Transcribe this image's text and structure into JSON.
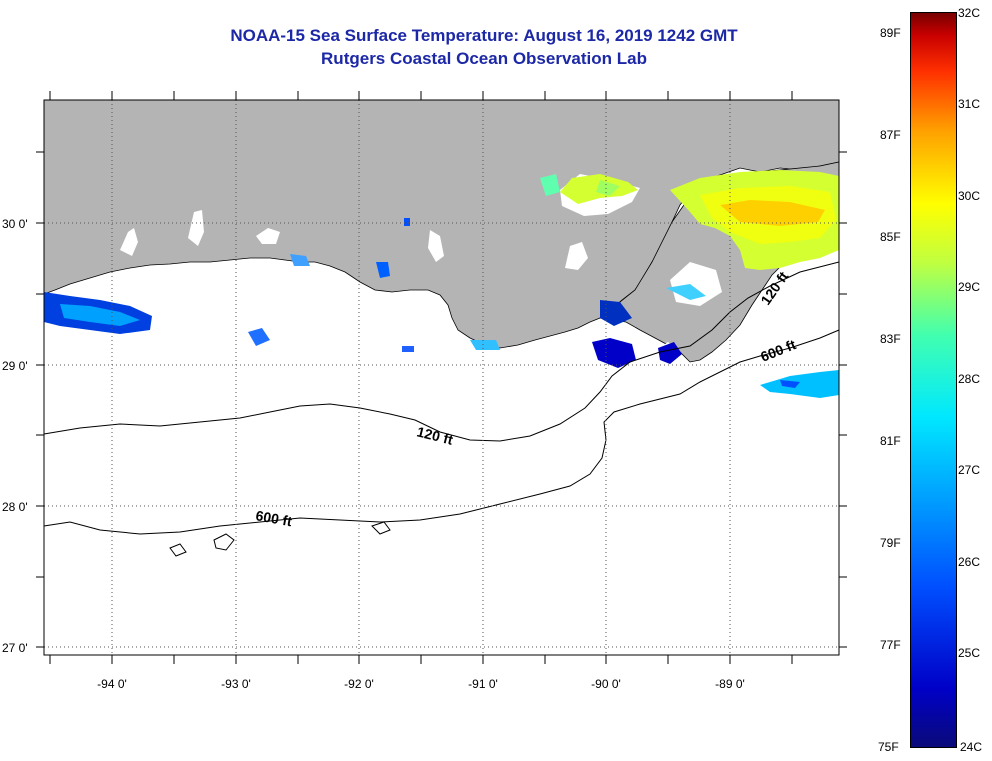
{
  "title": {
    "line1": "NOAA-15 Sea Surface Temperature:  August 16, 2019 1242 GMT",
    "line2": "Rutgers Coastal Ocean Observation Lab"
  },
  "map": {
    "lat_labels": [
      "30 0'",
      "29 0'",
      "28 0'",
      "27 0'"
    ],
    "lon_labels": [
      "-94 0'",
      "-93 0'",
      "-92 0'",
      "-91 0'",
      "-90 0'",
      "-89 0'"
    ],
    "contours": {
      "c120_west": "120 ft",
      "c120_east": "120 ft",
      "c600_west": "600 ft",
      "c600_east": "600 ft"
    },
    "colors": {
      "land": "#b4b4b4",
      "ocean": "#ffffff",
      "title": "#1c28a6"
    }
  },
  "colorbar": {
    "fahrenheit": [
      "89F",
      "87F",
      "85F",
      "83F",
      "81F",
      "79F",
      "77F",
      "75F"
    ],
    "celsius": [
      "32C",
      "31C",
      "30C",
      "29C",
      "28C",
      "27C",
      "26C",
      "25C",
      "24C"
    ],
    "range_c": [
      24,
      32
    ]
  }
}
